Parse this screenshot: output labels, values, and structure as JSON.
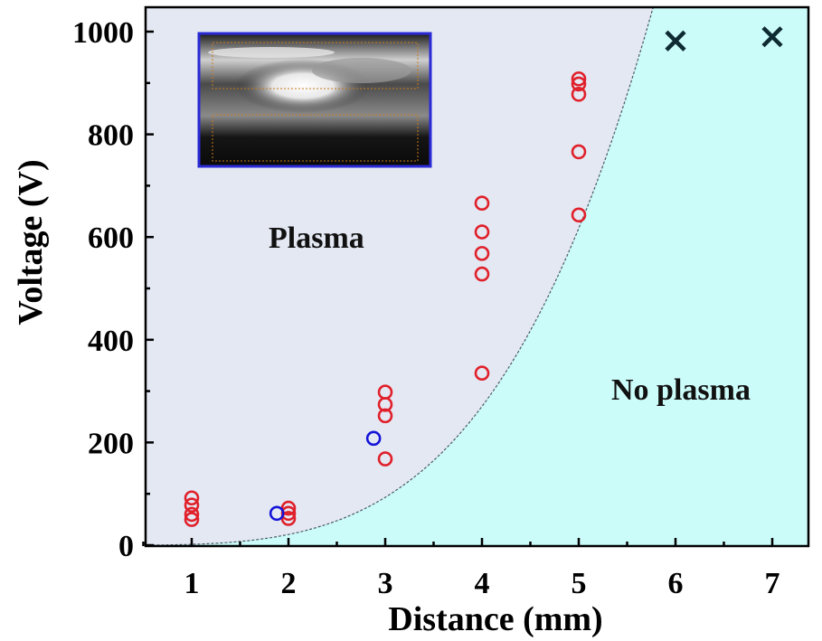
{
  "chart_data": {
    "type": "scatter",
    "xlabel": "Distance (mm)",
    "ylabel": "Voltage (V)",
    "xlim": [
      0.5,
      7.35
    ],
    "ylim": [
      0,
      1000
    ],
    "xticks": [
      1,
      2,
      3,
      4,
      5,
      6,
      7
    ],
    "yticks": [
      0,
      200,
      400,
      600,
      800,
      1000
    ],
    "grid": false,
    "regions": [
      {
        "name": "Plasma",
        "label": "Plasma",
        "color": "#e4e8f3"
      },
      {
        "name": "No plasma",
        "label": "No plasma",
        "color": "#ccfcfa"
      }
    ],
    "boundary_curve": {
      "type": "power",
      "a": 1.6,
      "b": 3.7,
      "note": "dashed boundary between regions"
    },
    "series": [
      {
        "name": "plasma-red",
        "marker": "open-circle",
        "color": "#e0202a",
        "points": [
          [
            1,
            92
          ],
          [
            1,
            78
          ],
          [
            1,
            60
          ],
          [
            1,
            50
          ],
          [
            2,
            72
          ],
          [
            2,
            62
          ],
          [
            2,
            52
          ],
          [
            3,
            298
          ],
          [
            3,
            274
          ],
          [
            3,
            252
          ],
          [
            3,
            168
          ],
          [
            4,
            666
          ],
          [
            4,
            610
          ],
          [
            4,
            568
          ],
          [
            4,
            528
          ],
          [
            4,
            335
          ],
          [
            5,
            908
          ],
          [
            5,
            898
          ],
          [
            5,
            878
          ],
          [
            5,
            766
          ],
          [
            5,
            643
          ]
        ]
      },
      {
        "name": "plasma-blue",
        "marker": "open-circle",
        "color": "#1414d8",
        "points": [
          [
            1.88,
            62
          ],
          [
            2.88,
            208
          ]
        ]
      },
      {
        "name": "no-plasma",
        "marker": "x",
        "color": "#0e2a32",
        "points": [
          [
            6,
            982
          ],
          [
            7,
            990
          ]
        ]
      }
    ]
  },
  "colors": {
    "plasma_region": "#e4e8f3",
    "no_plasma_region": "#ccfcfa",
    "inset_border": "#2a2ad6",
    "boundary": "#4a5a66"
  }
}
